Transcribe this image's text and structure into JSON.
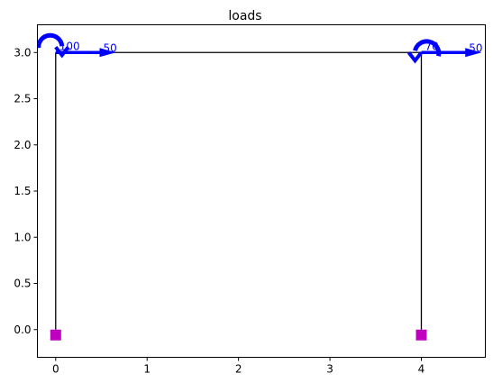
{
  "chart_data": {
    "type": "structural-frame",
    "title": "loads",
    "xlabel": "",
    "ylabel": "",
    "xlim": [
      -0.2,
      4.7
    ],
    "ylim": [
      -0.3,
      3.3
    ],
    "x_ticks": [
      0,
      1,
      2,
      3,
      4
    ],
    "x_tick_labels": [
      "0",
      "1",
      "2",
      "3",
      "4"
    ],
    "y_ticks": [
      0.0,
      0.5,
      1.0,
      1.5,
      2.0,
      2.5,
      3.0
    ],
    "y_tick_labels": [
      "0.0",
      "0.5",
      "1.0",
      "1.5",
      "2.0",
      "2.5",
      "3.0"
    ],
    "grid": false,
    "member_color": "#000000",
    "support_color": "#bf00bf",
    "load_color": "#0000ff",
    "members": [
      {
        "from": [
          0,
          0
        ],
        "to": [
          0,
          3
        ]
      },
      {
        "from": [
          0,
          3
        ],
        "to": [
          4,
          3
        ]
      },
      {
        "from": [
          4,
          3
        ],
        "to": [
          4,
          0
        ]
      }
    ],
    "supports": [
      {
        "x": 0,
        "y": 0
      },
      {
        "x": 4,
        "y": 0
      }
    ],
    "point_loads": [
      {
        "x": 0,
        "y": 3,
        "direction": "right",
        "length": 0.5,
        "label": "50"
      },
      {
        "x": 4,
        "y": 3,
        "direction": "right",
        "length": 0.5,
        "label": "50"
      }
    ],
    "moments": [
      {
        "x": 0,
        "y": 3,
        "sense": "counterclockwise",
        "label": "100"
      },
      {
        "x": 4,
        "y": 3,
        "sense": "clockwise",
        "label": "70"
      }
    ]
  }
}
